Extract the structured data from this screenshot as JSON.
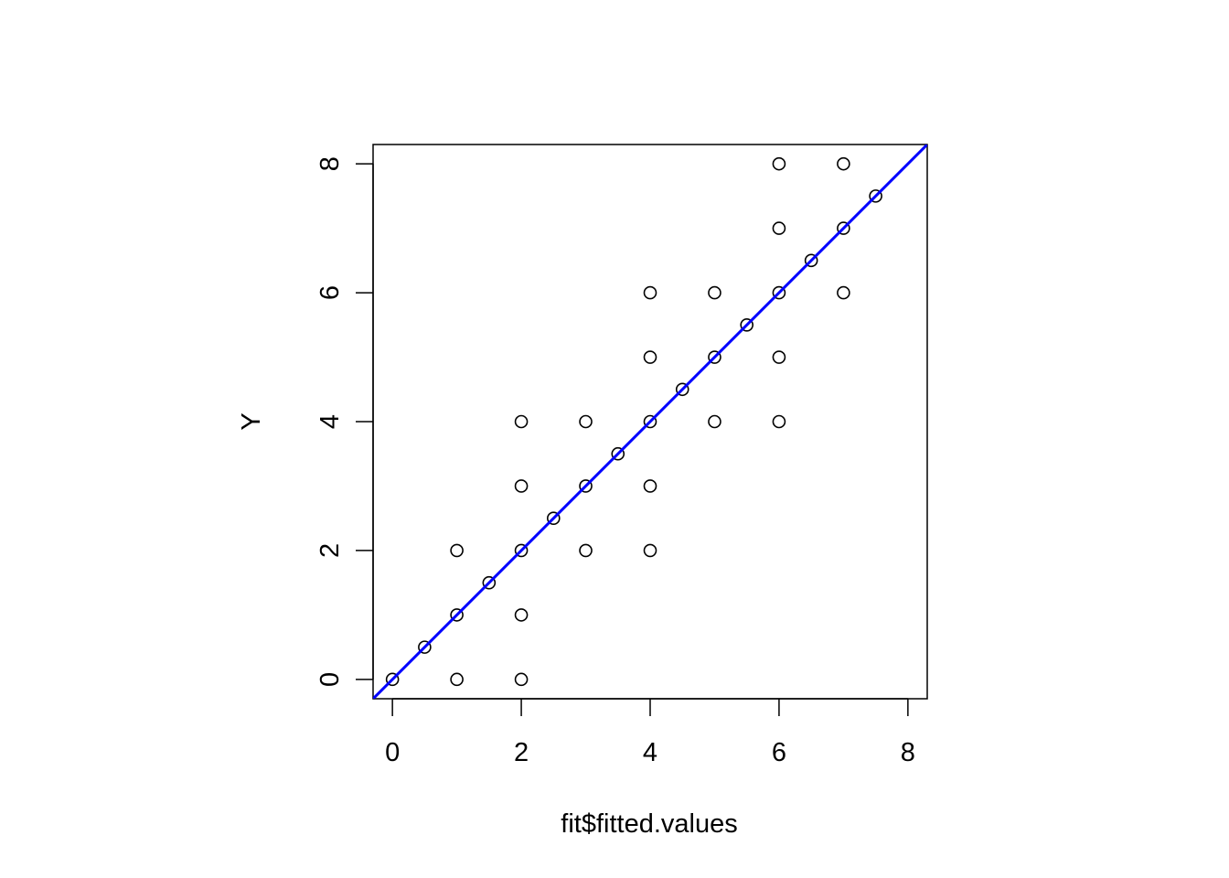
{
  "chart_data": {
    "type": "scatter",
    "title": "",
    "xlabel": "fit$fitted.values",
    "ylabel": "Y",
    "xlim": [
      -0.3,
      8.3
    ],
    "ylim": [
      -0.3,
      8.3
    ],
    "x_ticks": [
      "0",
      "2",
      "4",
      "6",
      "8"
    ],
    "y_ticks": [
      "0",
      "2",
      "4",
      "6",
      "8"
    ],
    "grid": false,
    "points": [
      {
        "x": 0,
        "y": 0
      },
      {
        "x": 0.5,
        "y": 0.5
      },
      {
        "x": 1,
        "y": 0
      },
      {
        "x": 1,
        "y": 1
      },
      {
        "x": 1,
        "y": 2
      },
      {
        "x": 1.5,
        "y": 1.5
      },
      {
        "x": 2,
        "y": 0
      },
      {
        "x": 2,
        "y": 1
      },
      {
        "x": 2,
        "y": 2
      },
      {
        "x": 2,
        "y": 3
      },
      {
        "x": 2,
        "y": 4
      },
      {
        "x": 2.5,
        "y": 2.5
      },
      {
        "x": 3,
        "y": 2
      },
      {
        "x": 3,
        "y": 3
      },
      {
        "x": 3,
        "y": 4
      },
      {
        "x": 3.5,
        "y": 3.5
      },
      {
        "x": 4,
        "y": 2
      },
      {
        "x": 4,
        "y": 3
      },
      {
        "x": 4,
        "y": 4
      },
      {
        "x": 4,
        "y": 5
      },
      {
        "x": 4,
        "y": 6
      },
      {
        "x": 4.5,
        "y": 4.5
      },
      {
        "x": 5,
        "y": 4
      },
      {
        "x": 5,
        "y": 5
      },
      {
        "x": 5,
        "y": 6
      },
      {
        "x": 5.5,
        "y": 5.5
      },
      {
        "x": 6,
        "y": 4
      },
      {
        "x": 6,
        "y": 5
      },
      {
        "x": 6,
        "y": 6
      },
      {
        "x": 6,
        "y": 7
      },
      {
        "x": 6,
        "y": 8
      },
      {
        "x": 6.5,
        "y": 6.5
      },
      {
        "x": 7,
        "y": 6
      },
      {
        "x": 7,
        "y": 7
      },
      {
        "x": 7,
        "y": 8
      },
      {
        "x": 7.5,
        "y": 7.5
      }
    ],
    "reference_line": {
      "intercept": 0,
      "slope": 1,
      "color": "#0000ff"
    },
    "point_color": "#000000",
    "axis_color": "#000000"
  }
}
